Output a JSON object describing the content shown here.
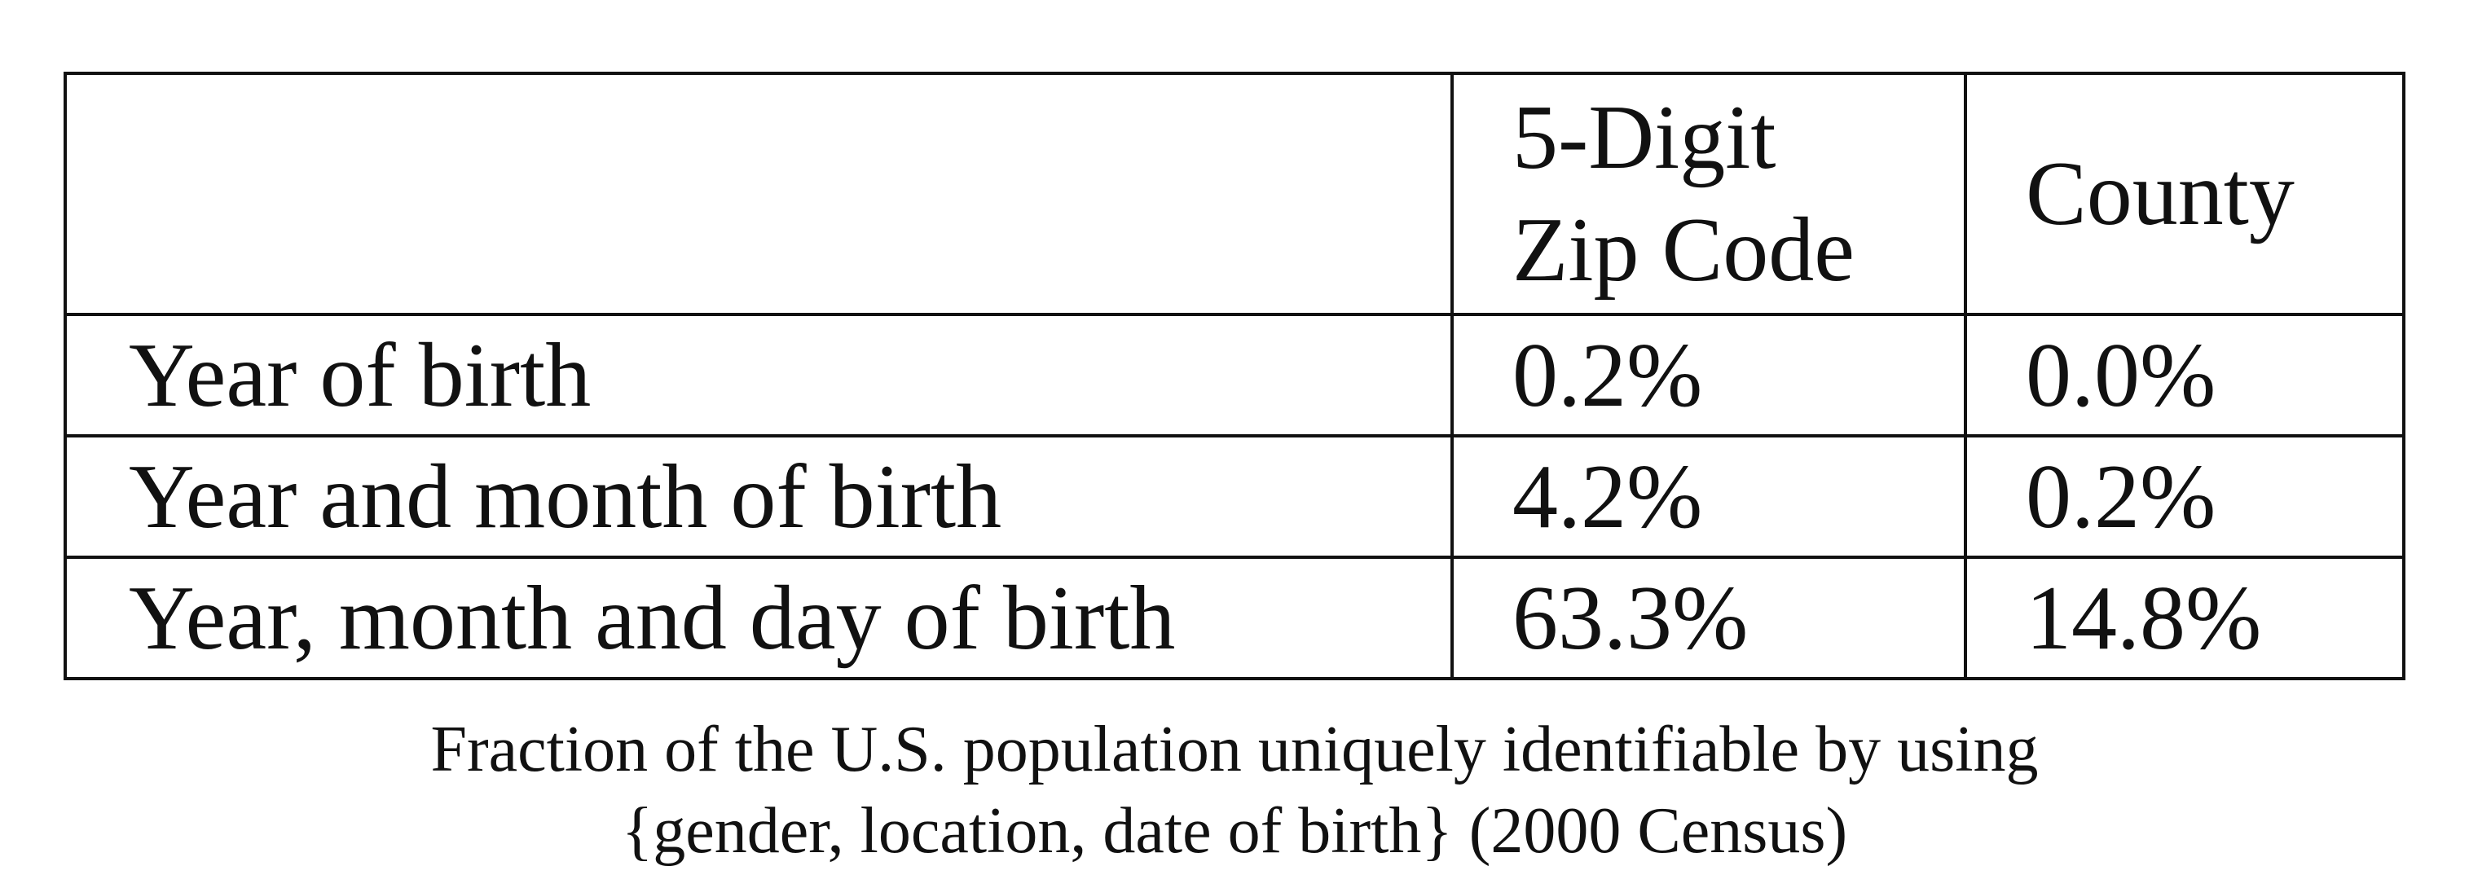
{
  "table": {
    "headers": [
      "",
      "5-Digit",
      "Zip Code",
      "County"
    ],
    "header_zip_line1": "5-Digit",
    "header_zip_line2": "Zip Code",
    "header_county": "County",
    "rows": [
      {
        "label": "Year of birth",
        "zip": "0.2%",
        "county": "0.0%"
      },
      {
        "label": "Year and month of birth",
        "zip": "4.2%",
        "county": "0.2%"
      },
      {
        "label": "Year, month and day of birth",
        "zip": "63.3%",
        "county": "14.8%"
      }
    ]
  },
  "caption": {
    "line1": "Fraction of the U.S. population uniquely identifiable by using",
    "line2": "{gender, location, date of birth} (2000 Census)"
  }
}
